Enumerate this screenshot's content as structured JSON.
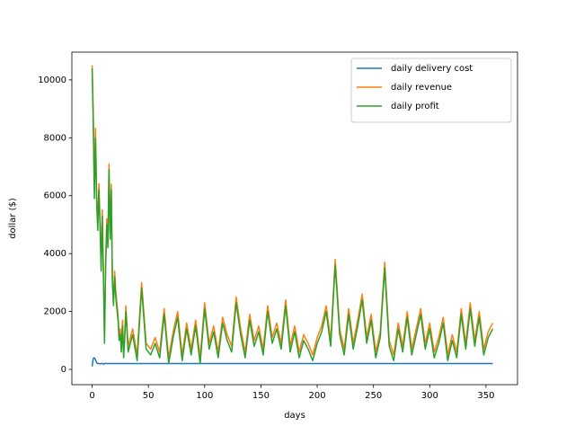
{
  "chart_data": {
    "type": "line",
    "xlabel": "days",
    "ylabel": "dollar ($)",
    "x": [
      0,
      1,
      2,
      3,
      4,
      5,
      6,
      7,
      8,
      9,
      10,
      11,
      12,
      13,
      14,
      15,
      16,
      17,
      18,
      19,
      20,
      21,
      22,
      23,
      24,
      25,
      26,
      27,
      28,
      29,
      30,
      32,
      36,
      40,
      44,
      48,
      52,
      56,
      60,
      64,
      68,
      72,
      76,
      80,
      84,
      88,
      92,
      96,
      100,
      104,
      108,
      112,
      116,
      120,
      124,
      128,
      132,
      136,
      140,
      144,
      148,
      152,
      156,
      160,
      164,
      168,
      172,
      176,
      180,
      184,
      188,
      192,
      196,
      200,
      204,
      208,
      212,
      216,
      220,
      224,
      228,
      232,
      236,
      240,
      244,
      248,
      252,
      256,
      260,
      264,
      268,
      272,
      276,
      280,
      284,
      288,
      292,
      296,
      300,
      304,
      308,
      312,
      316,
      320,
      324,
      328,
      332,
      336,
      340,
      344,
      348,
      352,
      356
    ],
    "series": [
      {
        "name": "daily delivery cost",
        "color": "#1f77b4",
        "values": [
          100,
          380,
          400,
          330,
          230,
          200,
          210,
          190,
          200,
          210,
          180,
          200,
          210,
          200,
          200,
          200,
          200,
          200,
          200,
          200,
          200,
          200,
          200,
          200,
          200,
          200,
          200,
          200,
          200,
          200,
          200,
          200,
          200,
          200,
          200,
          200,
          200,
          200,
          200,
          200,
          200,
          200,
          200,
          200,
          200,
          200,
          200,
          200,
          200,
          200,
          200,
          200,
          200,
          200,
          200,
          200,
          200,
          200,
          200,
          200,
          200,
          200,
          200,
          200,
          200,
          200,
          200,
          200,
          200,
          200,
          200,
          200,
          200,
          200,
          200,
          200,
          200,
          200,
          200,
          200,
          200,
          200,
          200,
          200,
          200,
          200,
          200,
          200,
          200,
          200,
          200,
          200,
          200,
          200,
          200,
          200,
          200,
          200,
          200,
          200,
          200,
          200,
          200,
          200,
          200,
          200,
          200,
          200,
          200,
          200,
          200,
          200,
          200
        ]
      },
      {
        "name": "daily revenue",
        "color": "#ff7f0e",
        "values": [
          10500,
          8880,
          6300,
          8330,
          6030,
          5000,
          6410,
          5190,
          3600,
          5510,
          3480,
          1100,
          3710,
          5200,
          4400,
          7100,
          4700,
          6400,
          3200,
          2400,
          3400,
          2700,
          2300,
          1900,
          1200,
          1400,
          800,
          1700,
          600,
          1300,
          2200,
          800,
          1400,
          500,
          3000,
          900,
          700,
          1100,
          600,
          2100,
          400,
          1300,
          2000,
          500,
          1600,
          700,
          1700,
          400,
          2300,
          900,
          1500,
          600,
          1800,
          1200,
          800,
          2500,
          1400,
          600,
          1900,
          1000,
          1500,
          700,
          2200,
          1100,
          1600,
          900,
          2400,
          800,
          1500,
          600,
          1200,
          900,
          500,
          1100,
          1500,
          2200,
          1000,
          3800,
          1400,
          700,
          2100,
          900,
          1700,
          2600,
          1100,
          1900,
          600,
          1300,
          3700,
          1000,
          500,
          1600,
          800,
          2000,
          700,
          1400,
          2100,
          900,
          1600,
          600,
          1100,
          1800,
          500,
          1200,
          600,
          2100,
          900,
          2300,
          1000,
          2000,
          700,
          1300,
          1600
        ]
      },
      {
        "name": "daily profit",
        "color": "#2ca02c",
        "values": [
          10400,
          8500,
          5900,
          8000,
          5800,
          4800,
          6200,
          5000,
          3400,
          5300,
          3300,
          900,
          3500,
          5000,
          4200,
          6900,
          4500,
          6200,
          3000,
          2200,
          3200,
          2500,
          2100,
          1700,
          1000,
          1200,
          600,
          1500,
          400,
          1100,
          2000,
          600,
          1200,
          300,
          2800,
          700,
          500,
          900,
          400,
          1900,
          200,
          1100,
          1800,
          300,
          1400,
          500,
          1500,
          200,
          2100,
          700,
          1300,
          400,
          1600,
          1000,
          600,
          2300,
          1200,
          400,
          1700,
          800,
          1300,
          500,
          2000,
          900,
          1400,
          700,
          2200,
          600,
          1300,
          400,
          1000,
          700,
          300,
          900,
          1300,
          2000,
          800,
          3600,
          1200,
          500,
          1900,
          700,
          1500,
          2400,
          900,
          1700,
          400,
          1100,
          3500,
          800,
          300,
          1400,
          600,
          1800,
          500,
          1200,
          1900,
          700,
          1400,
          400,
          900,
          1600,
          300,
          1000,
          400,
          1900,
          700,
          2100,
          800,
          1800,
          500,
          1100,
          1400
        ]
      }
    ],
    "xlim": [
      -18,
      378
    ],
    "ylim": [
      -528,
      10960
    ],
    "xticks": [
      0,
      50,
      100,
      150,
      200,
      250,
      300,
      350
    ],
    "yticks": [
      0,
      2000,
      4000,
      6000,
      8000,
      10000
    ],
    "legend": "upper right"
  }
}
